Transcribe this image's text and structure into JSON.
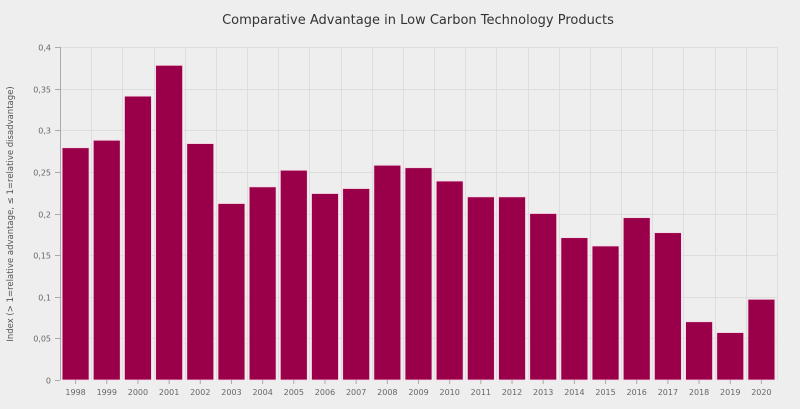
{
  "chart_data": {
    "type": "bar",
    "title": "Comparative Advantage in Low Carbon Technology Products",
    "xlabel": "",
    "ylabel": "Index (> 1=relative advantage, ≤ 1=relative disadvantage)",
    "ylim": [
      0,
      0.4
    ],
    "yticks": [
      0,
      0.05,
      0.1,
      0.15,
      0.2,
      0.25,
      0.3,
      0.35,
      0.4
    ],
    "ytick_labels": [
      "0",
      "0,05",
      "0,1",
      "0,15",
      "0,2",
      "0,25",
      "0,3",
      "0,35",
      "0,4"
    ],
    "grid": true,
    "legend": "none",
    "bar_color": "#990049",
    "categories": [
      "1998",
      "1999",
      "2000",
      "2001",
      "2002",
      "2003",
      "2004",
      "2005",
      "2006",
      "2007",
      "2008",
      "2009",
      "2010",
      "2011",
      "2012",
      "2013",
      "2014",
      "2015",
      "2016",
      "2017",
      "2018",
      "2019",
      "2020"
    ],
    "series": [
      {
        "name": "Index",
        "values": [
          0.279,
          0.288,
          0.341,
          0.378,
          0.284,
          0.212,
          0.232,
          0.252,
          0.224,
          0.23,
          0.258,
          0.255,
          0.239,
          0.22,
          0.22,
          0.2,
          0.171,
          0.161,
          0.195,
          0.177,
          0.07,
          0.057,
          0.097
        ]
      }
    ]
  }
}
